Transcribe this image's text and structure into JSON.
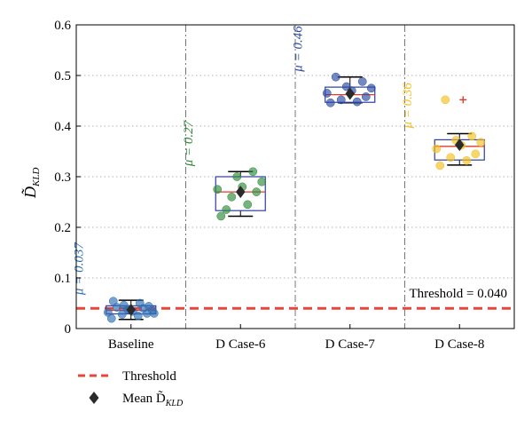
{
  "chart_data": {
    "type": "box",
    "ylabel": "D̃",
    "ylabel_sub": "KLD",
    "ylim": [
      0,
      0.6
    ],
    "yticks": [
      "0",
      "0.1",
      "0.2",
      "0.3",
      "0.4",
      "0.5",
      "0.6"
    ],
    "grid": true,
    "categories": [
      "Baseline",
      "D Case-6",
      "D Case-7",
      "D Case-8"
    ],
    "threshold": {
      "value": 0.04,
      "label": "Threshold = 0.040",
      "color": "#e8463a"
    },
    "groups": [
      {
        "name": "Baseline",
        "color": "#2e6fb5",
        "mean_label": "μ = 0.037",
        "mean": 0.037,
        "box": {
          "whisker_low": 0.018,
          "q1": 0.029,
          "median": 0.036,
          "q3": 0.045,
          "whisker_high": 0.056
        },
        "points": [
          0.02,
          0.025,
          0.028,
          0.03,
          0.032,
          0.034,
          0.036,
          0.038,
          0.04,
          0.042,
          0.044,
          0.046,
          0.05,
          0.054,
          0.03,
          0.038
        ],
        "outliers": []
      },
      {
        "name": "D Case-6",
        "color": "#2e8b3a",
        "mean_label": "μ = 0.27",
        "mean": 0.27,
        "box": {
          "whisker_low": 0.222,
          "q1": 0.233,
          "median": 0.27,
          "q3": 0.3,
          "whisker_high": 0.31
        },
        "points": [
          0.222,
          0.245,
          0.26,
          0.27,
          0.275,
          0.28,
          0.29,
          0.3,
          0.31,
          0.235
        ],
        "outliers": []
      },
      {
        "name": "D Case-7",
        "color": "#2a4aa0",
        "mean_label": "μ = 0.46",
        "mean": 0.464,
        "box": {
          "whisker_low": 0.446,
          "q1": 0.447,
          "median": 0.462,
          "q3": 0.477,
          "whisker_high": 0.497
        },
        "points": [
          0.446,
          0.448,
          0.452,
          0.458,
          0.465,
          0.47,
          0.475,
          0.478,
          0.488,
          0.497
        ],
        "outliers": []
      },
      {
        "name": "D Case-8",
        "color": "#f5c020",
        "mean_label": "μ = 0.36",
        "mean": 0.363,
        "box": {
          "whisker_low": 0.323,
          "q1": 0.333,
          "median": 0.36,
          "q3": 0.373,
          "whisker_high": 0.385
        },
        "points": [
          0.322,
          0.332,
          0.338,
          0.345,
          0.355,
          0.362,
          0.368,
          0.372,
          0.38,
          0.452
        ],
        "outliers": [
          0.452
        ]
      }
    ],
    "legend": {
      "threshold_label": "Threshold",
      "mean_label": "Mean D̃",
      "mean_label_sub": "KLD"
    }
  }
}
